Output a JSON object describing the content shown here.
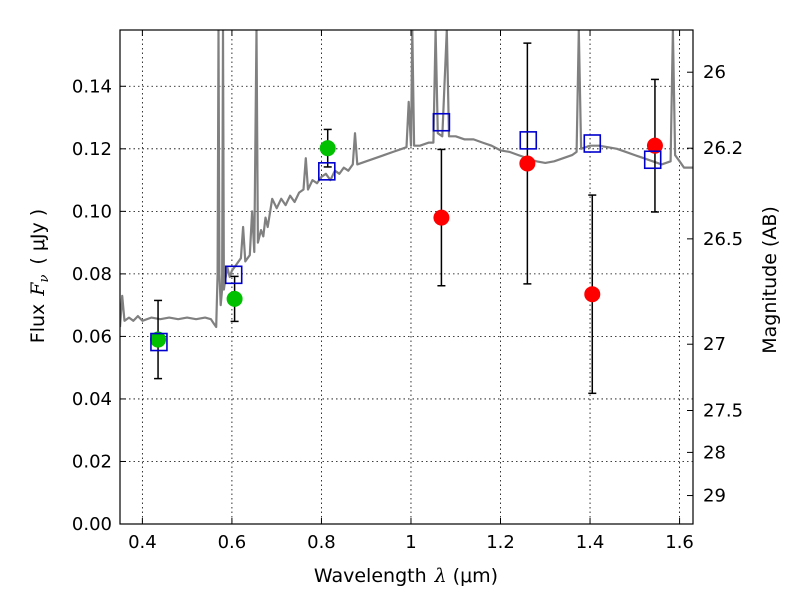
{
  "chart_data": {
    "type": "scatter",
    "xlabel": "Wavelength  λ (μm)",
    "ylabel": "Flux  F_ν  ( μJy )",
    "ylabel_parts": {
      "flux": "Flux",
      "f": "F",
      "nu": "ν",
      "units": "( μJy )"
    },
    "xlabel_parts": {
      "word": "Wavelength",
      "lambda": "λ",
      "units": "(μm)"
    },
    "right_ylabel": "Magnitude (AB)",
    "xlim": [
      0.35,
      1.63
    ],
    "ylim": [
      0.0,
      0.158
    ],
    "grid": true,
    "x_ticks": [
      0.4,
      0.6,
      0.8,
      1.0,
      1.2,
      1.4,
      1.6
    ],
    "x_tick_labels": [
      "0.4",
      "0.6",
      "0.8",
      "1",
      "1.2",
      "1.4",
      "1.6"
    ],
    "y_ticks": [
      0.0,
      0.02,
      0.04,
      0.06,
      0.08,
      0.1,
      0.12,
      0.14
    ],
    "y_tick_labels": [
      "0.00",
      "0.02",
      "0.04",
      "0.06",
      "0.08",
      "0.10",
      "0.12",
      "0.14"
    ],
    "right_ticks": [
      {
        "label": "26",
        "flux": 0.1445
      },
      {
        "label": "26.2",
        "flux": 0.1202
      },
      {
        "label": "26.5",
        "flux": 0.0912
      },
      {
        "label": "27",
        "flux": 0.0575
      },
      {
        "label": "27.5",
        "flux": 0.0363
      },
      {
        "label": "28",
        "flux": 0.0229
      },
      {
        "label": "29",
        "flux": 0.0091
      }
    ],
    "series": [
      {
        "name": "green detections",
        "color": "#00c000",
        "marker": "circle",
        "points": [
          {
            "x": 0.435,
            "y": 0.059,
            "err": 0.0125
          },
          {
            "x": 0.606,
            "y": 0.072,
            "err": 0.0072
          },
          {
            "x": 0.814,
            "y": 0.1202,
            "err": 0.006
          }
        ]
      },
      {
        "name": "red detections",
        "color": "#ff0000",
        "marker": "circle",
        "points": [
          {
            "x": 1.068,
            "y": 0.098,
            "err": 0.0218
          },
          {
            "x": 1.26,
            "y": 0.1153,
            "err": 0.0385
          },
          {
            "x": 1.405,
            "y": 0.0735,
            "err": 0.0317
          },
          {
            "x": 1.545,
            "y": 0.121,
            "err": 0.0212
          }
        ]
      },
      {
        "name": "model photometry",
        "color": "#0000cc",
        "marker": "open-square",
        "points": [
          {
            "x": 0.437,
            "y": 0.0582
          },
          {
            "x": 0.604,
            "y": 0.0797
          },
          {
            "x": 0.812,
            "y": 0.1128
          },
          {
            "x": 1.068,
            "y": 0.1285
          },
          {
            "x": 1.262,
            "y": 0.1227
          },
          {
            "x": 1.405,
            "y": 0.1217
          },
          {
            "x": 1.54,
            "y": 0.1165
          }
        ]
      }
    ],
    "model_spectrum": {
      "name": "model SED",
      "color": "#808080",
      "points": [
        [
          0.35,
          0.063
        ],
        [
          0.355,
          0.073
        ],
        [
          0.36,
          0.065
        ],
        [
          0.37,
          0.066
        ],
        [
          0.38,
          0.065
        ],
        [
          0.39,
          0.0665
        ],
        [
          0.4,
          0.065
        ],
        [
          0.42,
          0.066
        ],
        [
          0.44,
          0.0655
        ],
        [
          0.46,
          0.066
        ],
        [
          0.48,
          0.0655
        ],
        [
          0.5,
          0.066
        ],
        [
          0.52,
          0.0655
        ],
        [
          0.54,
          0.066
        ],
        [
          0.553,
          0.0655
        ],
        [
          0.56,
          0.064
        ],
        [
          0.565,
          0.063
        ],
        [
          0.568,
          0.08
        ],
        [
          0.57,
          0.158
        ],
        [
          0.572,
          0.08
        ],
        [
          0.575,
          0.07
        ],
        [
          0.578,
          0.075
        ],
        [
          0.58,
          0.158
        ],
        [
          0.582,
          0.075
        ],
        [
          0.585,
          0.078
        ],
        [
          0.59,
          0.082
        ],
        [
          0.595,
          0.079
        ],
        [
          0.6,
          0.081
        ],
        [
          0.61,
          0.083
        ],
        [
          0.62,
          0.085
        ],
        [
          0.625,
          0.095
        ],
        [
          0.63,
          0.084
        ],
        [
          0.64,
          0.086
        ],
        [
          0.645,
          0.1
        ],
        [
          0.65,
          0.087
        ],
        [
          0.655,
          0.158
        ],
        [
          0.658,
          0.09
        ],
        [
          0.665,
          0.094
        ],
        [
          0.67,
          0.092
        ],
        [
          0.675,
          0.098
        ],
        [
          0.68,
          0.095
        ],
        [
          0.69,
          0.104
        ],
        [
          0.7,
          0.101
        ],
        [
          0.71,
          0.104
        ],
        [
          0.72,
          0.102
        ],
        [
          0.73,
          0.105
        ],
        [
          0.74,
          0.103
        ],
        [
          0.75,
          0.106
        ],
        [
          0.76,
          0.107
        ],
        [
          0.765,
          0.117
        ],
        [
          0.77,
          0.107
        ],
        [
          0.78,
          0.11
        ],
        [
          0.79,
          0.109
        ],
        [
          0.8,
          0.111
        ],
        [
          0.81,
          0.112
        ],
        [
          0.82,
          0.11
        ],
        [
          0.83,
          0.113
        ],
        [
          0.84,
          0.112
        ],
        [
          0.85,
          0.114
        ],
        [
          0.86,
          0.113
        ],
        [
          0.87,
          0.115
        ],
        [
          0.875,
          0.125
        ],
        [
          0.88,
          0.115
        ],
        [
          0.9,
          0.116
        ],
        [
          0.92,
          0.117
        ],
        [
          0.94,
          0.118
        ],
        [
          0.96,
          0.119
        ],
        [
          0.98,
          0.12
        ],
        [
          0.99,
          0.1205
        ],
        [
          0.995,
          0.135
        ],
        [
          1.0,
          0.121
        ],
        [
          1.003,
          0.158
        ],
        [
          1.007,
          0.121
        ],
        [
          1.02,
          0.121
        ],
        [
          1.04,
          0.122
        ],
        [
          1.05,
          0.122
        ],
        [
          1.055,
          0.158
        ],
        [
          1.06,
          0.125
        ],
        [
          1.07,
          0.124
        ],
        [
          1.08,
          0.158
        ],
        [
          1.085,
          0.124
        ],
        [
          1.1,
          0.124
        ],
        [
          1.12,
          0.123
        ],
        [
          1.14,
          0.123
        ],
        [
          1.16,
          0.122
        ],
        [
          1.18,
          0.121
        ],
        [
          1.2,
          0.1195
        ],
        [
          1.22,
          0.119
        ],
        [
          1.24,
          0.118
        ],
        [
          1.26,
          0.117
        ],
        [
          1.28,
          0.116
        ],
        [
          1.3,
          0.1155
        ],
        [
          1.32,
          0.116
        ],
        [
          1.34,
          0.117
        ],
        [
          1.36,
          0.118
        ],
        [
          1.37,
          0.119
        ],
        [
          1.375,
          0.158
        ],
        [
          1.38,
          0.12
        ],
        [
          1.4,
          0.121
        ],
        [
          1.42,
          0.121
        ],
        [
          1.44,
          0.1205
        ],
        [
          1.46,
          0.12
        ],
        [
          1.48,
          0.119
        ],
        [
          1.5,
          0.118
        ],
        [
          1.52,
          0.117
        ],
        [
          1.54,
          0.116
        ],
        [
          1.56,
          0.115
        ],
        [
          1.58,
          0.116
        ],
        [
          1.585,
          0.158
        ],
        [
          1.59,
          0.118
        ],
        [
          1.6,
          0.116
        ],
        [
          1.61,
          0.114
        ],
        [
          1.63,
          0.114
        ]
      ]
    }
  }
}
